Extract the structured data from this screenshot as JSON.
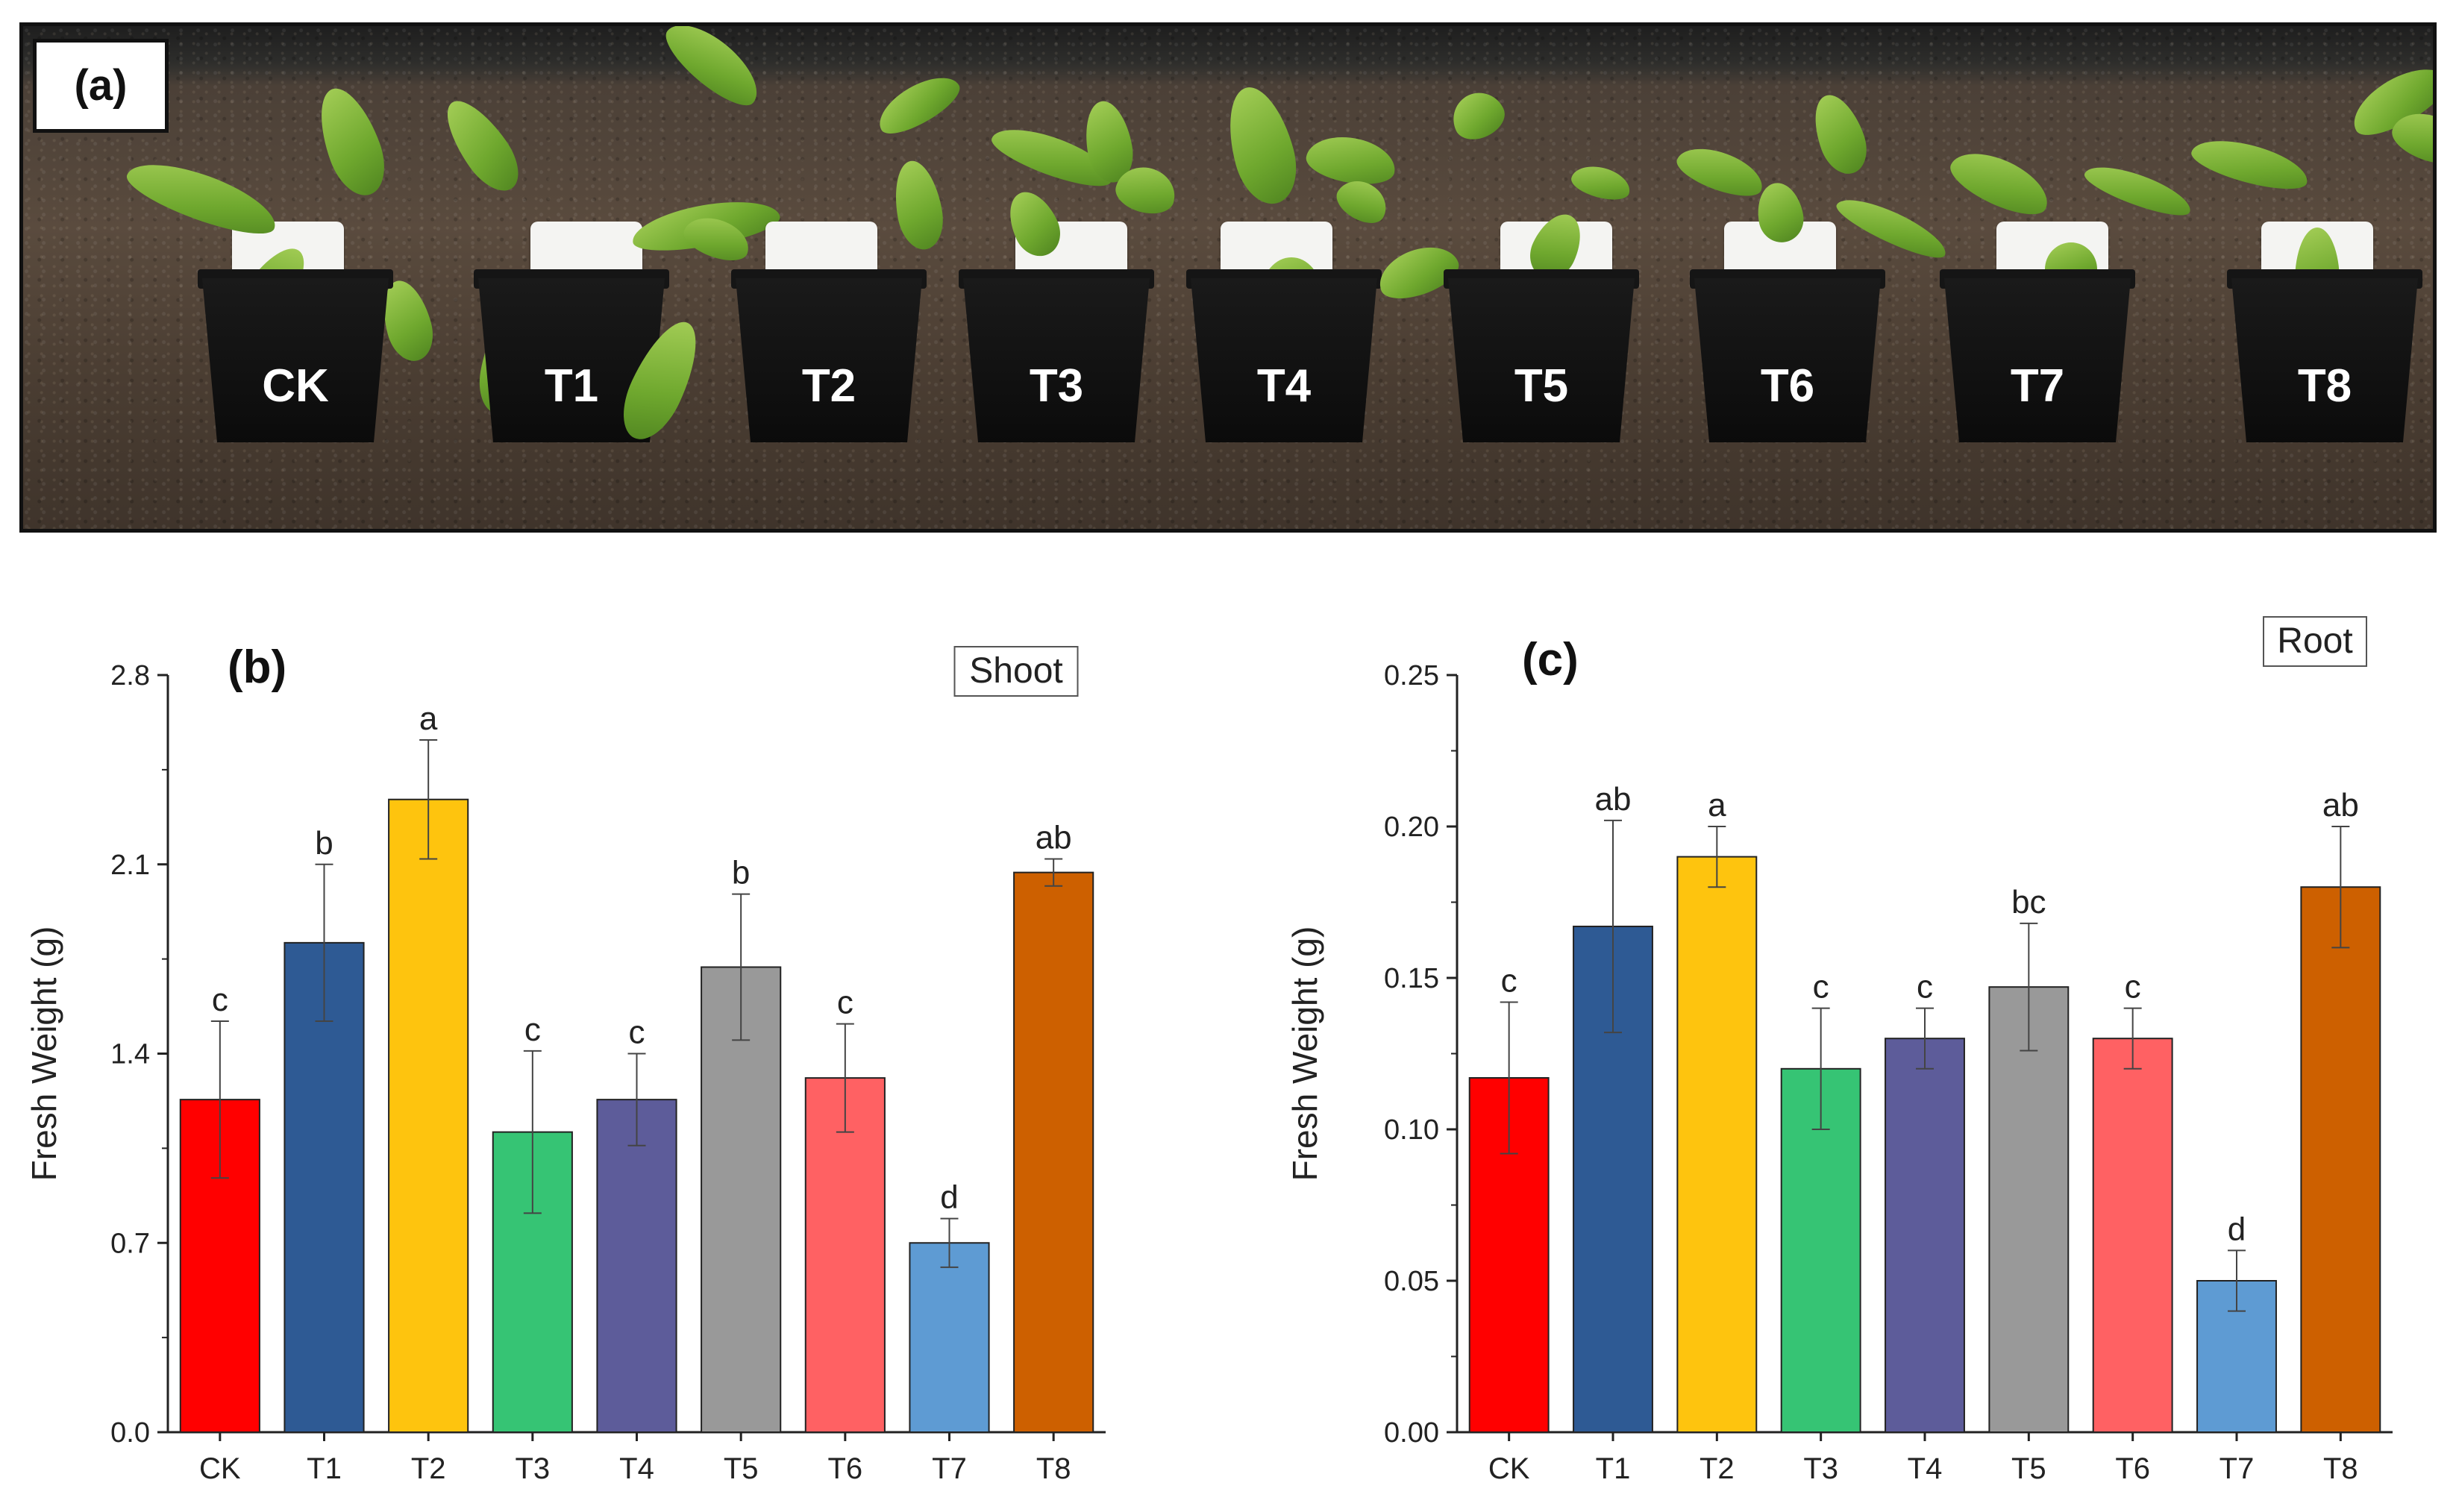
{
  "panel_a": {
    "label": "(a)",
    "pot_labels": [
      "CK",
      "T1",
      "T2",
      "T3",
      "T4",
      "T5",
      "T6",
      "T7",
      "T8"
    ]
  },
  "chart_data": [
    {
      "type": "bar",
      "panel_label": "(b)",
      "title": "Shoot",
      "ylabel": "Fresh Weight (g)",
      "xlabel": "",
      "ylim": [
        0,
        2.8
      ],
      "yticks": [
        "0.0",
        "0.7",
        "1.4",
        "2.1",
        "2.8"
      ],
      "categories": [
        "CK",
        "T1",
        "T2",
        "T3",
        "T4",
        "T5",
        "T6",
        "T7",
        "T8"
      ],
      "values": [
        1.23,
        1.81,
        2.34,
        1.11,
        1.23,
        1.72,
        1.31,
        0.7,
        2.07
      ],
      "errors": [
        0.29,
        0.29,
        0.22,
        0.3,
        0.17,
        0.27,
        0.2,
        0.09,
        0.05
      ],
      "significance": [
        "c",
        "b",
        "a",
        "c",
        "c",
        "b",
        "c",
        "d",
        "ab"
      ],
      "colors": [
        "#ff0000",
        "#2e5a94",
        "#fec40e",
        "#36c474",
        "#5d5c9a",
        "#999999",
        "#ff6163",
        "#5e9bd3",
        "#cd6000"
      ],
      "grid": false
    },
    {
      "type": "bar",
      "panel_label": "(c)",
      "title": "Root",
      "ylabel": "Fresh Weight (g)",
      "xlabel": "",
      "ylim": [
        0,
        0.25
      ],
      "yticks": [
        "0.00",
        "0.05",
        "0.10",
        "0.15",
        "0.20",
        "0.25"
      ],
      "categories": [
        "CK",
        "T1",
        "T2",
        "T3",
        "T4",
        "T5",
        "T6",
        "T7",
        "T8"
      ],
      "values": [
        0.117,
        0.167,
        0.19,
        0.12,
        0.13,
        0.147,
        0.13,
        0.05,
        0.18
      ],
      "errors": [
        0.025,
        0.035,
        0.01,
        0.02,
        0.01,
        0.021,
        0.01,
        0.01,
        0.02
      ],
      "significance": [
        "c",
        "ab",
        "a",
        "c",
        "c",
        "bc",
        "c",
        "d",
        "ab"
      ],
      "colors": [
        "#ff0000",
        "#2e5a94",
        "#fec40e",
        "#36c474",
        "#5d5c9a",
        "#999999",
        "#ff6163",
        "#5e9bd3",
        "#cd6000"
      ],
      "grid": false
    }
  ]
}
